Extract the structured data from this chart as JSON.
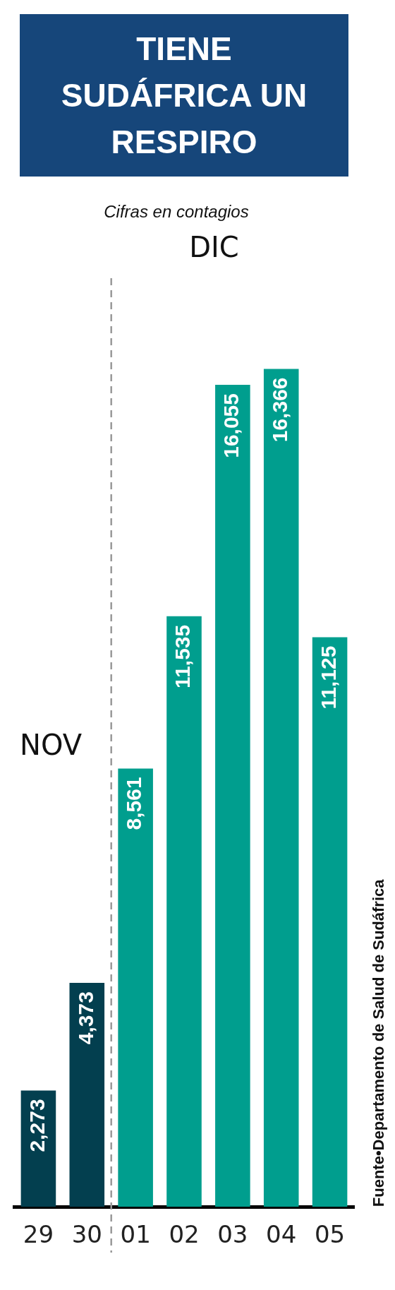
{
  "chart_data": {
    "type": "bar",
    "title": "TIENE SUDÁFRICA UN RESPIRO",
    "subtitle": "Cifras en contagios",
    "categories": [
      "29",
      "30",
      "01",
      "02",
      "03",
      "04",
      "05"
    ],
    "values": [
      2273,
      4373,
      8561,
      11535,
      16055,
      16366,
      11125
    ],
    "value_labels": [
      "2,273",
      "4,373",
      "8,561",
      "11,535",
      "16,055",
      "16,366",
      "11,125"
    ],
    "colors": [
      "#033f4f",
      "#033f4f",
      "#009e8e",
      "#009e8e",
      "#009e8e",
      "#009e8e",
      "#009e8e"
    ],
    "grid": false,
    "legend": false,
    "annotations": [
      "NOV",
      "DIC",
      "Fuente•Departamento de Salud de Sudáfrica"
    ]
  }
}
